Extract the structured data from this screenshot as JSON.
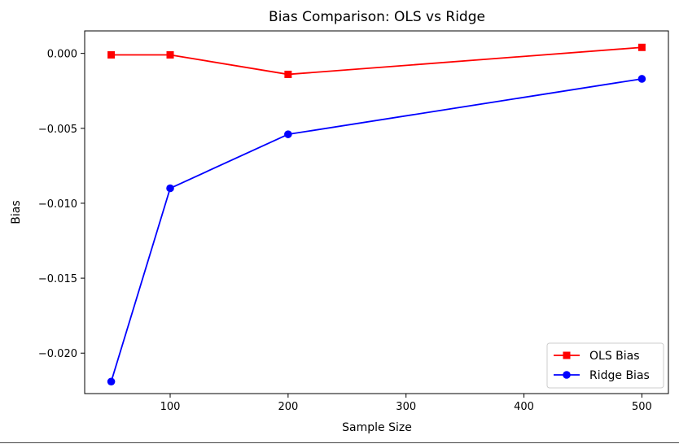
{
  "chart_data": {
    "type": "line",
    "title": "Bias Comparison: OLS vs Ridge",
    "xlabel": "Sample Size",
    "ylabel": "Bias",
    "xlim": [
      27.5,
      522.5
    ],
    "ylim": [
      -0.0227,
      0.0015
    ],
    "x_ticks": [
      100,
      200,
      300,
      400,
      500
    ],
    "x_tick_labels": [
      "100",
      "200",
      "300",
      "400",
      "500"
    ],
    "y_ticks": [
      0.0,
      -0.005,
      -0.01,
      -0.015,
      -0.02
    ],
    "y_tick_labels": [
      "0.000",
      "−0.005",
      "−0.010",
      "−0.015",
      "−0.020"
    ],
    "grid": false,
    "legend_position": "lower right",
    "series": [
      {
        "name": "OLS Bias",
        "color": "#ff0000",
        "marker": "square",
        "x": [
          50,
          100,
          200,
          500
        ],
        "y": [
          -0.0001,
          -0.0001,
          -0.0014,
          0.0004
        ]
      },
      {
        "name": "Ridge Bias",
        "color": "#0000ff",
        "marker": "circle",
        "x": [
          50,
          100,
          200,
          500
        ],
        "y": [
          -0.0219,
          -0.009,
          -0.0054,
          -0.0017
        ]
      }
    ]
  }
}
